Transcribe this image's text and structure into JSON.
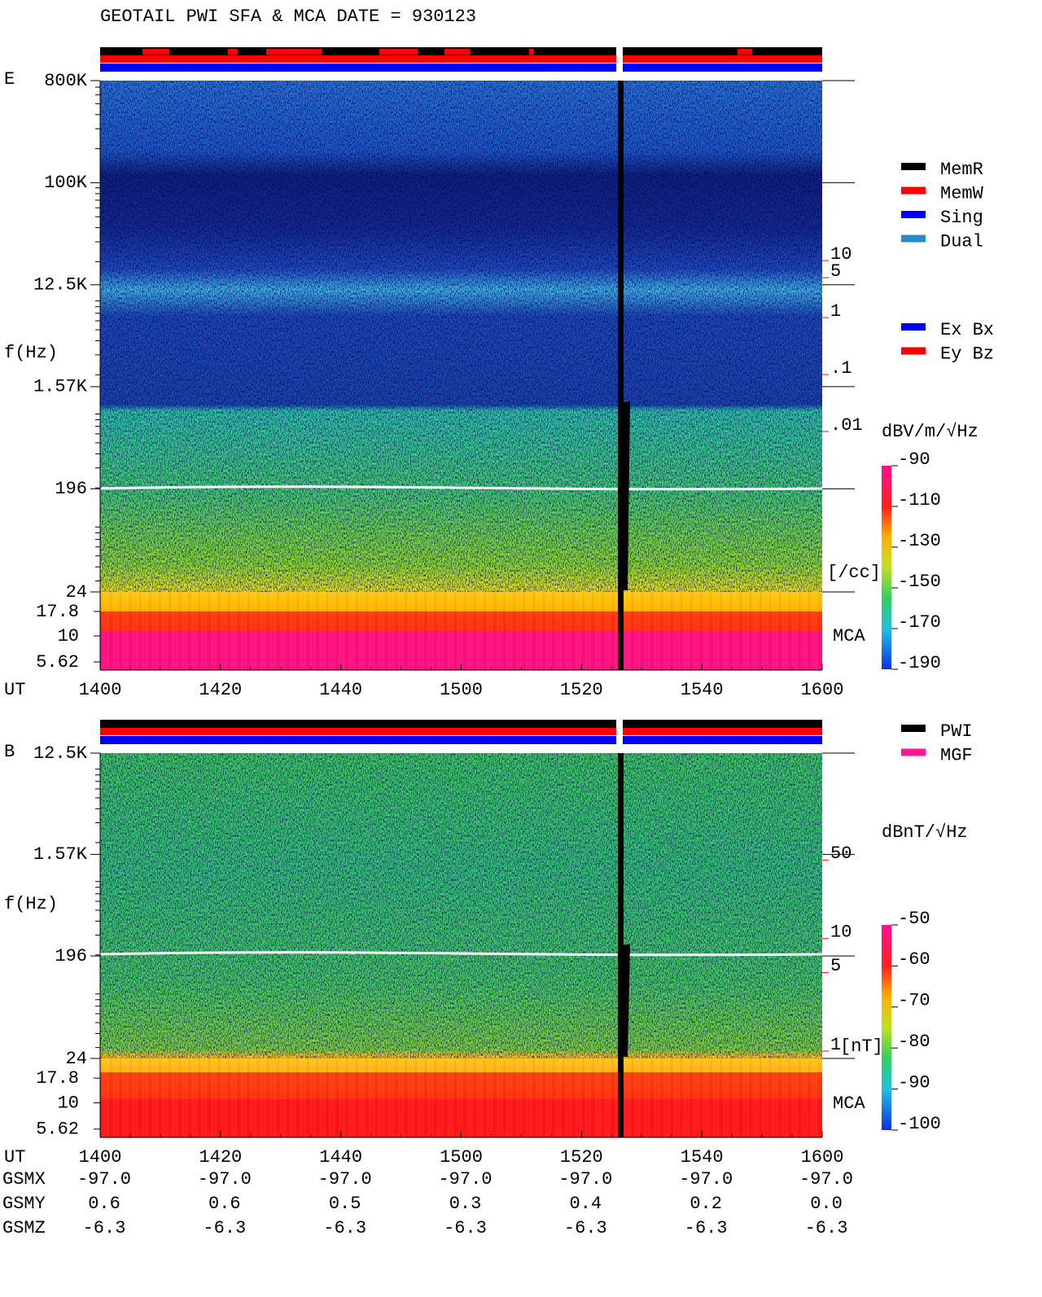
{
  "chart_data": [
    {
      "type": "spectrogram",
      "title": "GEOTAIL  PWI SFA & MCA   DATE = 930123",
      "panel_label": "E",
      "y_label": "f(Hz)",
      "x_label": "UT",
      "categories": [
        "1400",
        "1420",
        "1440",
        "1500",
        "1520",
        "1540",
        "1600"
      ],
      "yscale": "log",
      "ylim": [
        24,
        800000
      ],
      "yticks": [
        {
          "value": 800000,
          "label": "800K"
        },
        {
          "value": 100000,
          "label": "100K"
        },
        {
          "value": 12500,
          "label": "12.5K"
        },
        {
          "value": 1570,
          "label": "1.57K"
        },
        196,
        24
      ],
      "mca_label": "MCA",
      "mca_channels": [
        17.8,
        10,
        5.62
      ],
      "right_axis": {
        "label": "[/cc]",
        "scale": "log",
        "lim": [
          1.53e-05,
          14400
        ],
        "color": "#ff0000",
        "ticks": [
          10,
          5,
          1,
          {
            "value": 0.1,
            "label": ".1"
          },
          {
            "value": 0.01,
            "label": ".01"
          }
        ]
      },
      "colorbar": {
        "label": "dBV/m/√Hz",
        "lim": [
          -190,
          -90
        ],
        "ticks": [
          -90,
          -110,
          -130,
          -150,
          -170,
          -190
        ]
      },
      "legend": [
        {
          "name": "MemR",
          "color": "#000000"
        },
        {
          "name": "MemW",
          "color": "#ff0000"
        },
        {
          "name": "Sing",
          "color": "#0000ff"
        },
        {
          "name": "Dual",
          "color": "#2a8ac8"
        }
      ],
      "legend2": [
        {
          "name": "Ex Bx",
          "color": "#0000ff"
        },
        {
          "name": "Ey Bz",
          "color": "#ff0000"
        }
      ]
    },
    {
      "type": "spectrogram",
      "panel_label": "B",
      "y_label": "f(Hz)",
      "x_label": "UT",
      "categories": [
        "1400",
        "1420",
        "1440",
        "1500",
        "1520",
        "1540",
        "1600"
      ],
      "yscale": "log",
      "ylim": [
        24,
        12500
      ],
      "yticks": [
        {
          "value": 12500,
          "label": "12.5K"
        },
        {
          "value": 1570,
          "label": "1.57K"
        },
        196,
        24
      ],
      "mca_label": "MCA",
      "mca_channels": [
        17.8,
        10,
        5.62
      ],
      "right_axis": {
        "label": "[nT]",
        "scale": "log",
        "lim": [
          0.86,
          446
        ],
        "color": "#ff0000",
        "ticks": [
          50,
          10,
          5,
          1
        ]
      },
      "colorbar": {
        "label": "dBnT/√Hz",
        "lim": [
          -100,
          -50
        ],
        "ticks": [
          -50,
          -60,
          -70,
          -80,
          -90,
          -100
        ]
      },
      "legend": [
        {
          "name": "PWI",
          "color": "#000000"
        },
        {
          "name": "MGF",
          "color": "#ff1493"
        }
      ]
    }
  ],
  "orbit_table": {
    "row_labels": [
      "GSMX",
      "GSMY",
      "GSMZ"
    ],
    "rows": [
      [
        "-97.0",
        "-97.0",
        "-97.0",
        "-97.0",
        "-97.0",
        "-97.0",
        "-97.0"
      ],
      [
        "0.6",
        "0.6",
        "0.5",
        "0.3",
        "0.4",
        "0.2",
        "0.0"
      ],
      [
        "-6.3",
        "-6.3",
        "-6.3",
        "-6.3",
        "-6.3",
        "-6.3",
        "-6.3"
      ]
    ]
  }
}
